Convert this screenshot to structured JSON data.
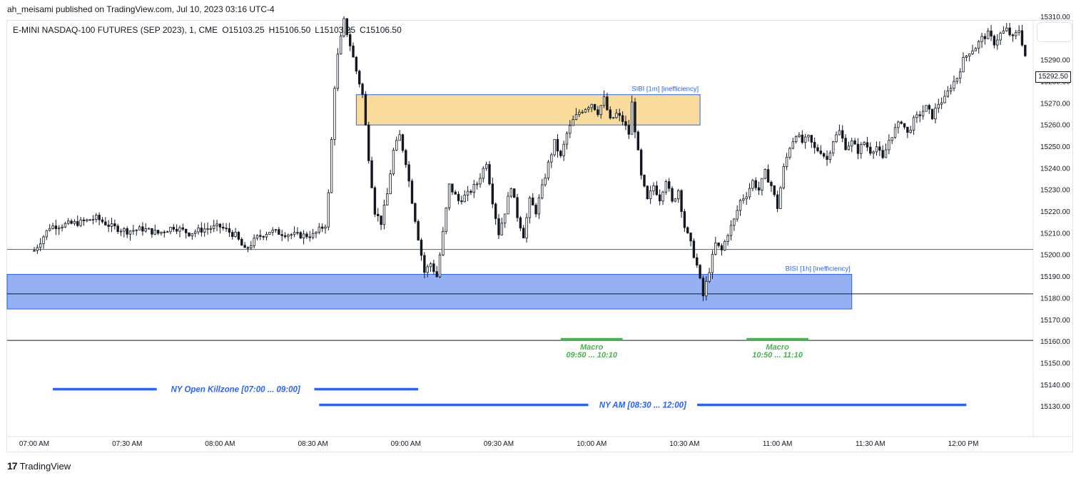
{
  "header": {
    "published_line": "ah_meisami published on TradingView.com, Jul 10, 2023 03:16 UTC-4",
    "symbol_line": "E-MINI NASDAQ-100 FUTURES (SEP 2023), 1, CME",
    "open": "O15103.25",
    "high": "H15106.50",
    "low": "L15103.25",
    "close": "C15106.50"
  },
  "footer": {
    "logo": "17",
    "brand": "TradingView"
  },
  "last_price_label": "15292.50",
  "colors": {
    "up": "#ffffff",
    "down": "#131722",
    "sibi_fill": "#f7d07a",
    "bisi_fill": "#8aa8f2",
    "session_line": "#2962ff",
    "macro_green": "#4caf50",
    "hline_green": "#2e7d32"
  },
  "chart_data": {
    "type": "candlestick",
    "ylim": [
      15123,
      15318
    ],
    "y_ticks": [
      15130,
      15140,
      15150,
      15160,
      15170,
      15180,
      15190,
      15200,
      15210,
      15220,
      15230,
      15240,
      15250,
      15260,
      15270,
      15280,
      15290,
      15300,
      15310
    ],
    "y_tick_labels": [
      "15130.00",
      "15140.00",
      "15150.00",
      "15160.00",
      "15170.00",
      "15180.00",
      "15190.00",
      "15200.00",
      "15210.00",
      "15220.00",
      "15230.00",
      "15240.00",
      "15250.00",
      "15260.00",
      "15270.00",
      "15280.00",
      "15290.00",
      "15300.00",
      "15310.00"
    ],
    "x_labels": [
      "07:00 AM",
      "07:30 AM",
      "08:00 AM",
      "08:30 AM",
      "09:00 AM",
      "09:30 AM",
      "10:00 AM",
      "10:30 AM",
      "11:00 AM",
      "11:30 AM",
      "12:00 PM"
    ],
    "x_label_minutes": [
      0,
      30,
      60,
      90,
      120,
      150,
      180,
      210,
      240,
      270,
      300
    ],
    "x_range_minutes": [
      -3,
      325
    ],
    "price_path": [
      [
        0,
        15202
      ],
      [
        5,
        15213
      ],
      [
        10,
        15214
      ],
      [
        15,
        15215
      ],
      [
        20,
        15217
      ],
      [
        25,
        15213
      ],
      [
        30,
        15211
      ],
      [
        35,
        15212
      ],
      [
        40,
        15210
      ],
      [
        45,
        15213
      ],
      [
        50,
        15210
      ],
      [
        55,
        15212
      ],
      [
        60,
        15213
      ],
      [
        65,
        15209
      ],
      [
        68,
        15202
      ],
      [
        72,
        15208
      ],
      [
        76,
        15211
      ],
      [
        80,
        15210
      ],
      [
        85,
        15209
      ],
      [
        90,
        15209
      ],
      [
        94,
        15214
      ],
      [
        95,
        15228
      ],
      [
        97,
        15278
      ],
      [
        98,
        15292
      ],
      [
        100,
        15308
      ],
      [
        102,
        15297
      ],
      [
        104,
        15285
      ],
      [
        106,
        15274
      ],
      [
        108,
        15245
      ],
      [
        110,
        15220
      ],
      [
        112,
        15215
      ],
      [
        114,
        15228
      ],
      [
        116,
        15248
      ],
      [
        118,
        15255
      ],
      [
        120,
        15243
      ],
      [
        122,
        15225
      ],
      [
        124,
        15208
      ],
      [
        126,
        15192
      ],
      [
        128,
        15196
      ],
      [
        130,
        15190
      ],
      [
        132,
        15210
      ],
      [
        134,
        15232
      ],
      [
        137,
        15225
      ],
      [
        140,
        15228
      ],
      [
        143,
        15233
      ],
      [
        146,
        15243
      ],
      [
        148,
        15225
      ],
      [
        150,
        15210
      ],
      [
        152,
        15220
      ],
      [
        154,
        15232
      ],
      [
        156,
        15218
      ],
      [
        158,
        15209
      ],
      [
        160,
        15225
      ],
      [
        162,
        15220
      ],
      [
        164,
        15231
      ],
      [
        166,
        15242
      ],
      [
        168,
        15252
      ],
      [
        170,
        15245
      ],
      [
        172,
        15256
      ],
      [
        174,
        15262
      ],
      [
        176,
        15266
      ],
      [
        178,
        15268
      ],
      [
        180,
        15270
      ],
      [
        182,
        15266
      ],
      [
        184,
        15272
      ],
      [
        186,
        15262
      ],
      [
        188,
        15265
      ],
      [
        190,
        15262
      ],
      [
        192,
        15256
      ],
      [
        193,
        15270
      ],
      [
        194,
        15258
      ],
      [
        196,
        15236
      ],
      [
        198,
        15225
      ],
      [
        200,
        15232
      ],
      [
        202,
        15226
      ],
      [
        204,
        15235
      ],
      [
        206,
        15224
      ],
      [
        208,
        15230
      ],
      [
        210,
        15213
      ],
      [
        212,
        15205
      ],
      [
        214,
        15195
      ],
      [
        216,
        15181
      ],
      [
        218,
        15193
      ],
      [
        220,
        15205
      ],
      [
        222,
        15202
      ],
      [
        224,
        15210
      ],
      [
        226,
        15216
      ],
      [
        228,
        15225
      ],
      [
        230,
        15228
      ],
      [
        232,
        15234
      ],
      [
        234,
        15230
      ],
      [
        236,
        15238
      ],
      [
        238,
        15232
      ],
      [
        240,
        15222
      ],
      [
        242,
        15240
      ],
      [
        244,
        15250
      ],
      [
        246,
        15256
      ],
      [
        248,
        15252
      ],
      [
        250,
        15254
      ],
      [
        252,
        15249
      ],
      [
        254,
        15248
      ],
      [
        256,
        15244
      ],
      [
        258,
        15253
      ],
      [
        260,
        15257
      ],
      [
        262,
        15250
      ],
      [
        264,
        15252
      ],
      [
        266,
        15248
      ],
      [
        268,
        15252
      ],
      [
        270,
        15248
      ],
      [
        272,
        15250
      ],
      [
        274,
        15244
      ],
      [
        276,
        15253
      ],
      [
        278,
        15258
      ],
      [
        280,
        15262
      ],
      [
        282,
        15256
      ],
      [
        284,
        15262
      ],
      [
        286,
        15265
      ],
      [
        288,
        15268
      ],
      [
        290,
        15264
      ],
      [
        292,
        15270
      ],
      [
        294,
        15272
      ],
      [
        296,
        15278
      ],
      [
        298,
        15282
      ],
      [
        300,
        15290
      ],
      [
        302,
        15294
      ],
      [
        304,
        15296
      ],
      [
        306,
        15300
      ],
      [
        308,
        15302
      ],
      [
        310,
        15298
      ],
      [
        312,
        15302
      ],
      [
        314,
        15304
      ],
      [
        316,
        15300
      ],
      [
        318,
        15304
      ],
      [
        320,
        15292
      ]
    ],
    "boxes": [
      {
        "label": "SIBI [1m] [inefficiency]",
        "x_start": 104,
        "x_end": 215,
        "y_low": 15260,
        "y_high": 15274,
        "kind": "sibi"
      },
      {
        "label": "BISI [1h] [inefficiency]",
        "x_start": -2,
        "x_end": 264,
        "y_low": 15175,
        "y_high": 15191,
        "kind": "bisi"
      }
    ],
    "hlines": [
      {
        "y": 15202.5,
        "x_start": -2,
        "x_end": 325,
        "color": "#2e7d32"
      },
      {
        "y": 15182,
        "x_start": -2,
        "x_end": 325,
        "color": "#131722"
      },
      {
        "y": 15160.5,
        "x_start": -2,
        "x_end": 325,
        "color": "#131722"
      }
    ],
    "sessions": [
      {
        "label": "NY Open Killzone [07:00 ... 09:00]",
        "x_start": 6,
        "x_end": 124,
        "y": 15148
      },
      {
        "label": "NY AM [08:30 ... 12:00]",
        "x_start": 92,
        "x_end": 301,
        "y": 15141
      }
    ],
    "macros": [
      {
        "label": "Macro",
        "time": "09:50 ... 10:10",
        "x_start": 170,
        "x_end": 190
      },
      {
        "label": "Macro",
        "time": "10:50 ... 11:10",
        "x_start": 230,
        "x_end": 250
      }
    ]
  }
}
